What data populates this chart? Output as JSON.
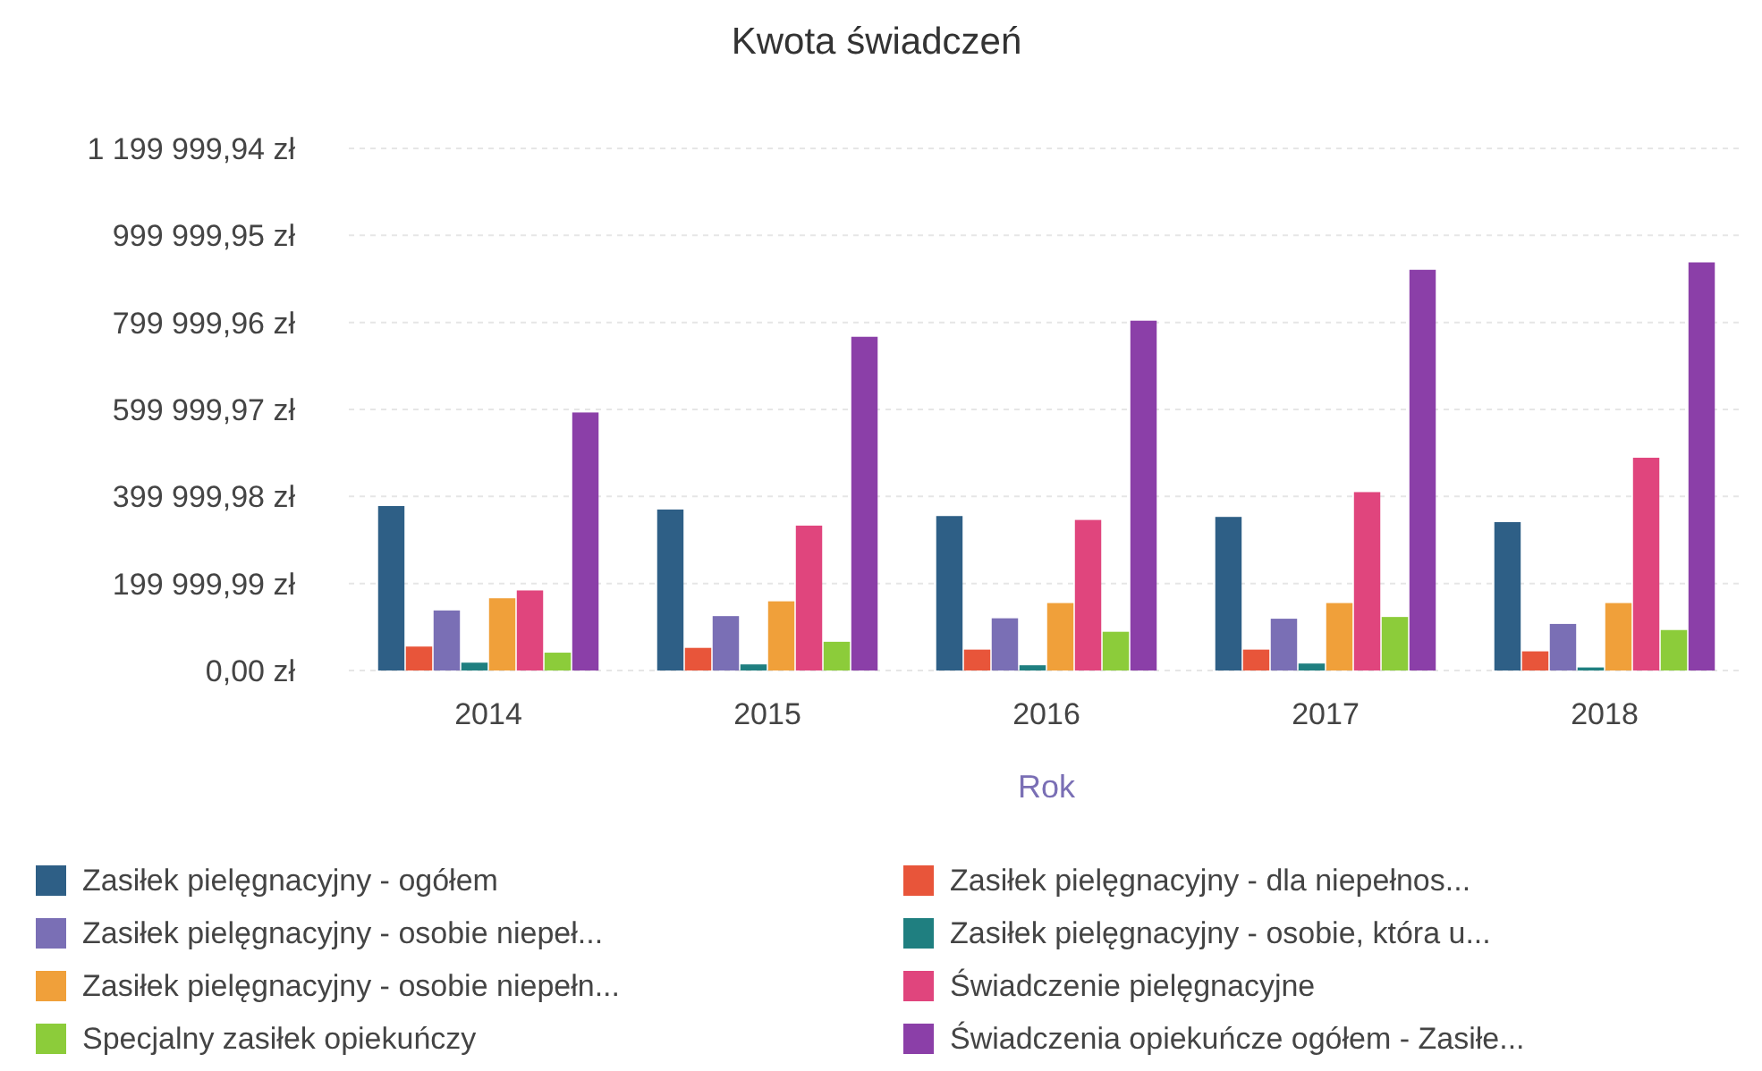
{
  "chart_data": {
    "type": "bar",
    "title": "Kwota świadczeń",
    "xlabel": "Rok",
    "categories": [
      "2014",
      "2015",
      "2016",
      "2017",
      "2018"
    ],
    "series": [
      {
        "name": "Zasiłek pielęgnacyjny - ogółem",
        "color": "#2e5f86",
        "values": [
          378000,
          370000,
          355000,
          353000,
          341000
        ]
      },
      {
        "name": "Zasiłek pielęgnacyjny - dla niepełnos...",
        "color": "#e8553a",
        "values": [
          55000,
          52000,
          48000,
          48000,
          44000
        ]
      },
      {
        "name": "Zasiłek pielęgnacyjny - osobie niepeł...",
        "color": "#7a6fb5",
        "values": [
          138000,
          125000,
          120000,
          119000,
          107000
        ]
      },
      {
        "name": "Zasiłek pielęgnacyjny - osobie, która u...",
        "color": "#1f7f80",
        "values": [
          18000,
          14000,
          12000,
          16000,
          7000
        ]
      },
      {
        "name": "Zasiłek pielęgnacyjny -  osobie niepełn...",
        "color": "#f0a03a",
        "values": [
          166000,
          159000,
          155000,
          155000,
          155000
        ]
      },
      {
        "name": "Świadczenie pielęgnacyjne",
        "color": "#e0457d",
        "values": [
          184000,
          333000,
          346000,
          410000,
          489000
        ]
      },
      {
        "name": "Specjalny zasiłek opiekuńczy",
        "color": "#8ccc3a",
        "values": [
          41000,
          66000,
          89000,
          123000,
          93000
        ]
      },
      {
        "name": "Świadczenia opiekuńcze ogółem - Zasiłe...",
        "color": "#8b3fa8",
        "values": [
          593000,
          767000,
          804000,
          921000,
          938000
        ]
      }
    ],
    "ylim": [
      0,
      1199999.94
    ],
    "yticks": [
      {
        "value": 0,
        "label": "0,00 zł"
      },
      {
        "value": 199999.99,
        "label": "199 999,99 zł"
      },
      {
        "value": 399999.98,
        "label": "399 999,98 zł"
      },
      {
        "value": 599999.97,
        "label": "599 999,97 zł"
      },
      {
        "value": 799999.96,
        "label": "799 999,96 zł"
      },
      {
        "value": 999999.95,
        "label": "999 999,95 zł"
      },
      {
        "value": 1199999.94,
        "label": "1 199 999,94 zł"
      }
    ],
    "grid": "y",
    "legend": "bottom"
  }
}
